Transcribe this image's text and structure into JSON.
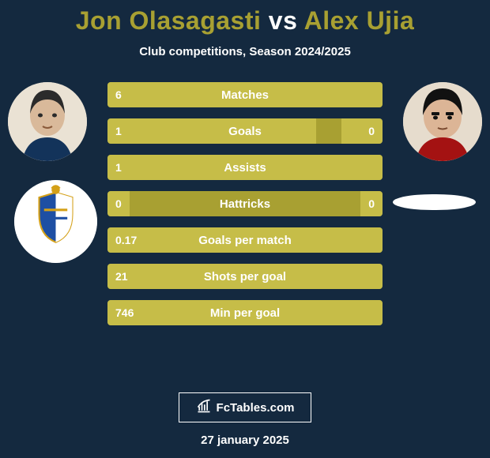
{
  "colors": {
    "page_bg": "#14293f",
    "title_player1": "#a8a032",
    "title_vs": "#ffffff",
    "title_player2": "#a8a032",
    "subtitle": "#ffffff",
    "bar_bg": "#a8a032",
    "bar_fill": "#c6bd48",
    "bar_label": "#ffffff",
    "bar_value": "#ffffff",
    "footer_text": "#ffffff"
  },
  "title": {
    "player1": "Jon Olasagasti",
    "vs": "vs",
    "player2": "Alex Ujia"
  },
  "subtitle": "Club competitions, Season 2024/2025",
  "rows": [
    {
      "label": "Matches",
      "left_text": "6",
      "right_text": "",
      "left_pct": 100,
      "right_pct": 0
    },
    {
      "label": "Goals",
      "left_text": "1",
      "right_text": "0",
      "left_pct": 76,
      "right_pct": 15
    },
    {
      "label": "Assists",
      "left_text": "1",
      "right_text": "",
      "left_pct": 100,
      "right_pct": 0
    },
    {
      "label": "Hattricks",
      "left_text": "0",
      "right_text": "0",
      "left_pct": 8,
      "right_pct": 8
    },
    {
      "label": "Goals per match",
      "left_text": "0.17",
      "right_text": "",
      "left_pct": 100,
      "right_pct": 0
    },
    {
      "label": "Shots per goal",
      "left_text": "21",
      "right_text": "",
      "left_pct": 100,
      "right_pct": 0
    },
    {
      "label": "Min per goal",
      "left_text": "746",
      "right_text": "",
      "left_pct": 100,
      "right_pct": 0
    }
  ],
  "brand": "FcTables.com",
  "date": "27 january 2025"
}
